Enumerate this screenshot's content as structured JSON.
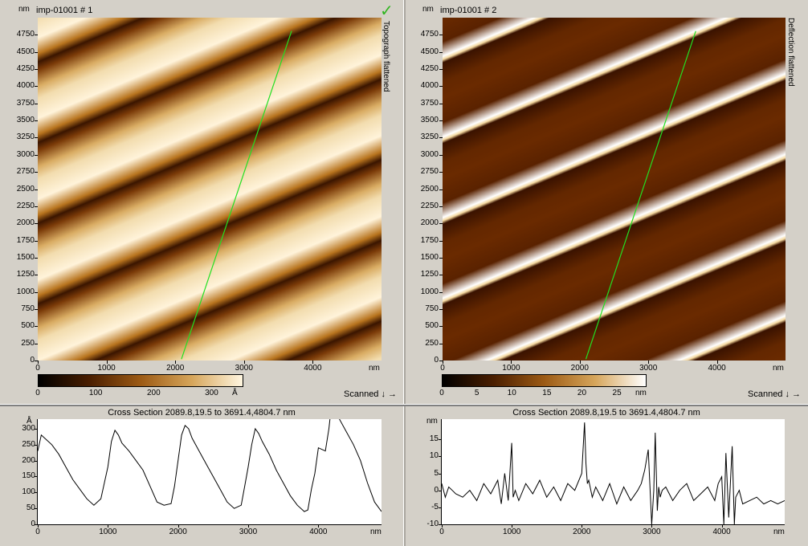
{
  "panels": [
    {
      "id": "p1",
      "title": "imp-01001 # 1",
      "channel": "Topograph flattened",
      "y_ticks": [
        "4750",
        "4500",
        "4250",
        "4000",
        "3750",
        "3500",
        "3250",
        "3000",
        "2750",
        "2500",
        "2250",
        "2000",
        "1750",
        "1500",
        "1250",
        "1000",
        "750",
        "500",
        "250",
        "0"
      ],
      "y_unit": "nm",
      "x_ticks": [
        "0",
        "1000",
        "2000",
        "3000",
        "4000"
      ],
      "x_unit": "nm",
      "colorbar_ticks": [
        "0",
        "100",
        "200",
        "300"
      ],
      "colorbar_unit": "Å",
      "scanned_label": "Scanned ↓ →",
      "colormap": [
        "#000000",
        "#4a1e00",
        "#9c5a14",
        "#d6a55a",
        "#fff6e0"
      ]
    },
    {
      "id": "p2",
      "title": "imp-01001 # 2",
      "channel": "Deflection flattened",
      "y_ticks": [
        "4750",
        "4500",
        "4250",
        "4000",
        "3750",
        "3500",
        "3250",
        "3000",
        "2750",
        "2500",
        "2250",
        "2000",
        "1750",
        "1500",
        "1250",
        "1000",
        "750",
        "500",
        "250",
        "0"
      ],
      "y_unit": "nm",
      "x_ticks": [
        "0",
        "1000",
        "2000",
        "3000",
        "4000"
      ],
      "x_unit": "nm",
      "colorbar_ticks": [
        "0",
        "5",
        "10",
        "15",
        "20",
        "25"
      ],
      "colorbar_unit": "nm",
      "scanned_label": "Scanned ↓ →",
      "colormap": [
        "#000000",
        "#4a1e00",
        "#9c5a14",
        "#d6a55a",
        "#ffffff"
      ]
    }
  ],
  "sections": [
    {
      "title": "Cross Section 2089.8,19.5 to 3691.4,4804.7 nm",
      "y_unit": "Å",
      "y_ticks": [
        "300",
        "250",
        "200",
        "150",
        "100",
        "50",
        "0"
      ],
      "x_ticks": [
        "0",
        "1000",
        "2000",
        "3000",
        "4000"
      ],
      "x_unit": "nm",
      "chart_data": {
        "type": "line",
        "xlim": [
          0,
          4900
        ],
        "ylim": [
          0,
          330
        ],
        "x": [
          0,
          50,
          100,
          200,
          300,
          400,
          500,
          600,
          700,
          800,
          850,
          900,
          1000,
          1050,
          1100,
          1150,
          1200,
          1300,
          1400,
          1500,
          1600,
          1700,
          1800,
          1900,
          1950,
          2000,
          2050,
          2100,
          2150,
          2200,
          2300,
          2400,
          2500,
          2600,
          2700,
          2800,
          2900,
          2950,
          3000,
          3050,
          3100,
          3150,
          3200,
          3300,
          3400,
          3500,
          3600,
          3700,
          3800,
          3850,
          3900,
          3950,
          4000,
          4100,
          4150,
          4200,
          4250,
          4300,
          4400,
          4500,
          4600,
          4700,
          4800,
          4900
        ],
        "y": [
          230,
          280,
          270,
          250,
          220,
          180,
          140,
          110,
          80,
          60,
          70,
          80,
          180,
          260,
          295,
          280,
          255,
          230,
          200,
          170,
          120,
          70,
          60,
          65,
          120,
          200,
          280,
          310,
          300,
          270,
          230,
          190,
          150,
          110,
          70,
          50,
          60,
          120,
          180,
          250,
          300,
          285,
          260,
          220,
          170,
          130,
          90,
          60,
          40,
          45,
          110,
          160,
          240,
          230,
          300,
          400,
          390,
          330,
          290,
          250,
          200,
          130,
          70,
          40
        ]
      }
    },
    {
      "title": "Cross Section 2089.8,19.5 to 3691.4,4804.7 nm",
      "y_unit": "nm",
      "y_ticks": [
        "15",
        "10",
        "5",
        "0",
        "-5",
        "-10"
      ],
      "x_ticks": [
        "0",
        "1000",
        "2000",
        "3000",
        "4000"
      ],
      "x_unit": "nm",
      "chart_data": {
        "type": "line",
        "xlim": [
          0,
          4900
        ],
        "ylim": [
          -10,
          21
        ],
        "x": [
          0,
          50,
          100,
          150,
          200,
          300,
          400,
          500,
          600,
          700,
          800,
          850,
          900,
          950,
          1000,
          1020,
          1050,
          1100,
          1200,
          1300,
          1400,
          1500,
          1600,
          1700,
          1800,
          1900,
          2000,
          2040,
          2060,
          2080,
          2100,
          2150,
          2200,
          2300,
          2400,
          2500,
          2600,
          2700,
          2800,
          2850,
          2900,
          2950,
          3000,
          3030,
          3050,
          3080,
          3100,
          3120,
          3150,
          3200,
          3300,
          3400,
          3500,
          3600,
          3700,
          3800,
          3900,
          3950,
          4000,
          4030,
          4060,
          4100,
          4150,
          4180,
          4200,
          4250,
          4300,
          4400,
          4500,
          4600,
          4700,
          4800,
          4900
        ],
        "y": [
          2,
          -2,
          1,
          0,
          -1,
          -2,
          0,
          -3,
          2,
          -1,
          3,
          -4,
          5,
          -3,
          14,
          -2,
          0,
          -3,
          2,
          -1,
          3,
          -2,
          1,
          -3,
          2,
          0,
          5,
          20,
          8,
          2,
          3,
          -2,
          1,
          -3,
          2,
          -4,
          1,
          -3,
          0,
          2,
          6,
          12,
          -10,
          0,
          17,
          -6,
          1,
          -2,
          0,
          1,
          -3,
          0,
          2,
          -3,
          -1,
          1,
          -3,
          2,
          4,
          -10,
          11,
          -8,
          13,
          -10,
          -2,
          0,
          -4,
          -3,
          -2,
          -4,
          -3,
          -4,
          -3
        ]
      }
    }
  ]
}
